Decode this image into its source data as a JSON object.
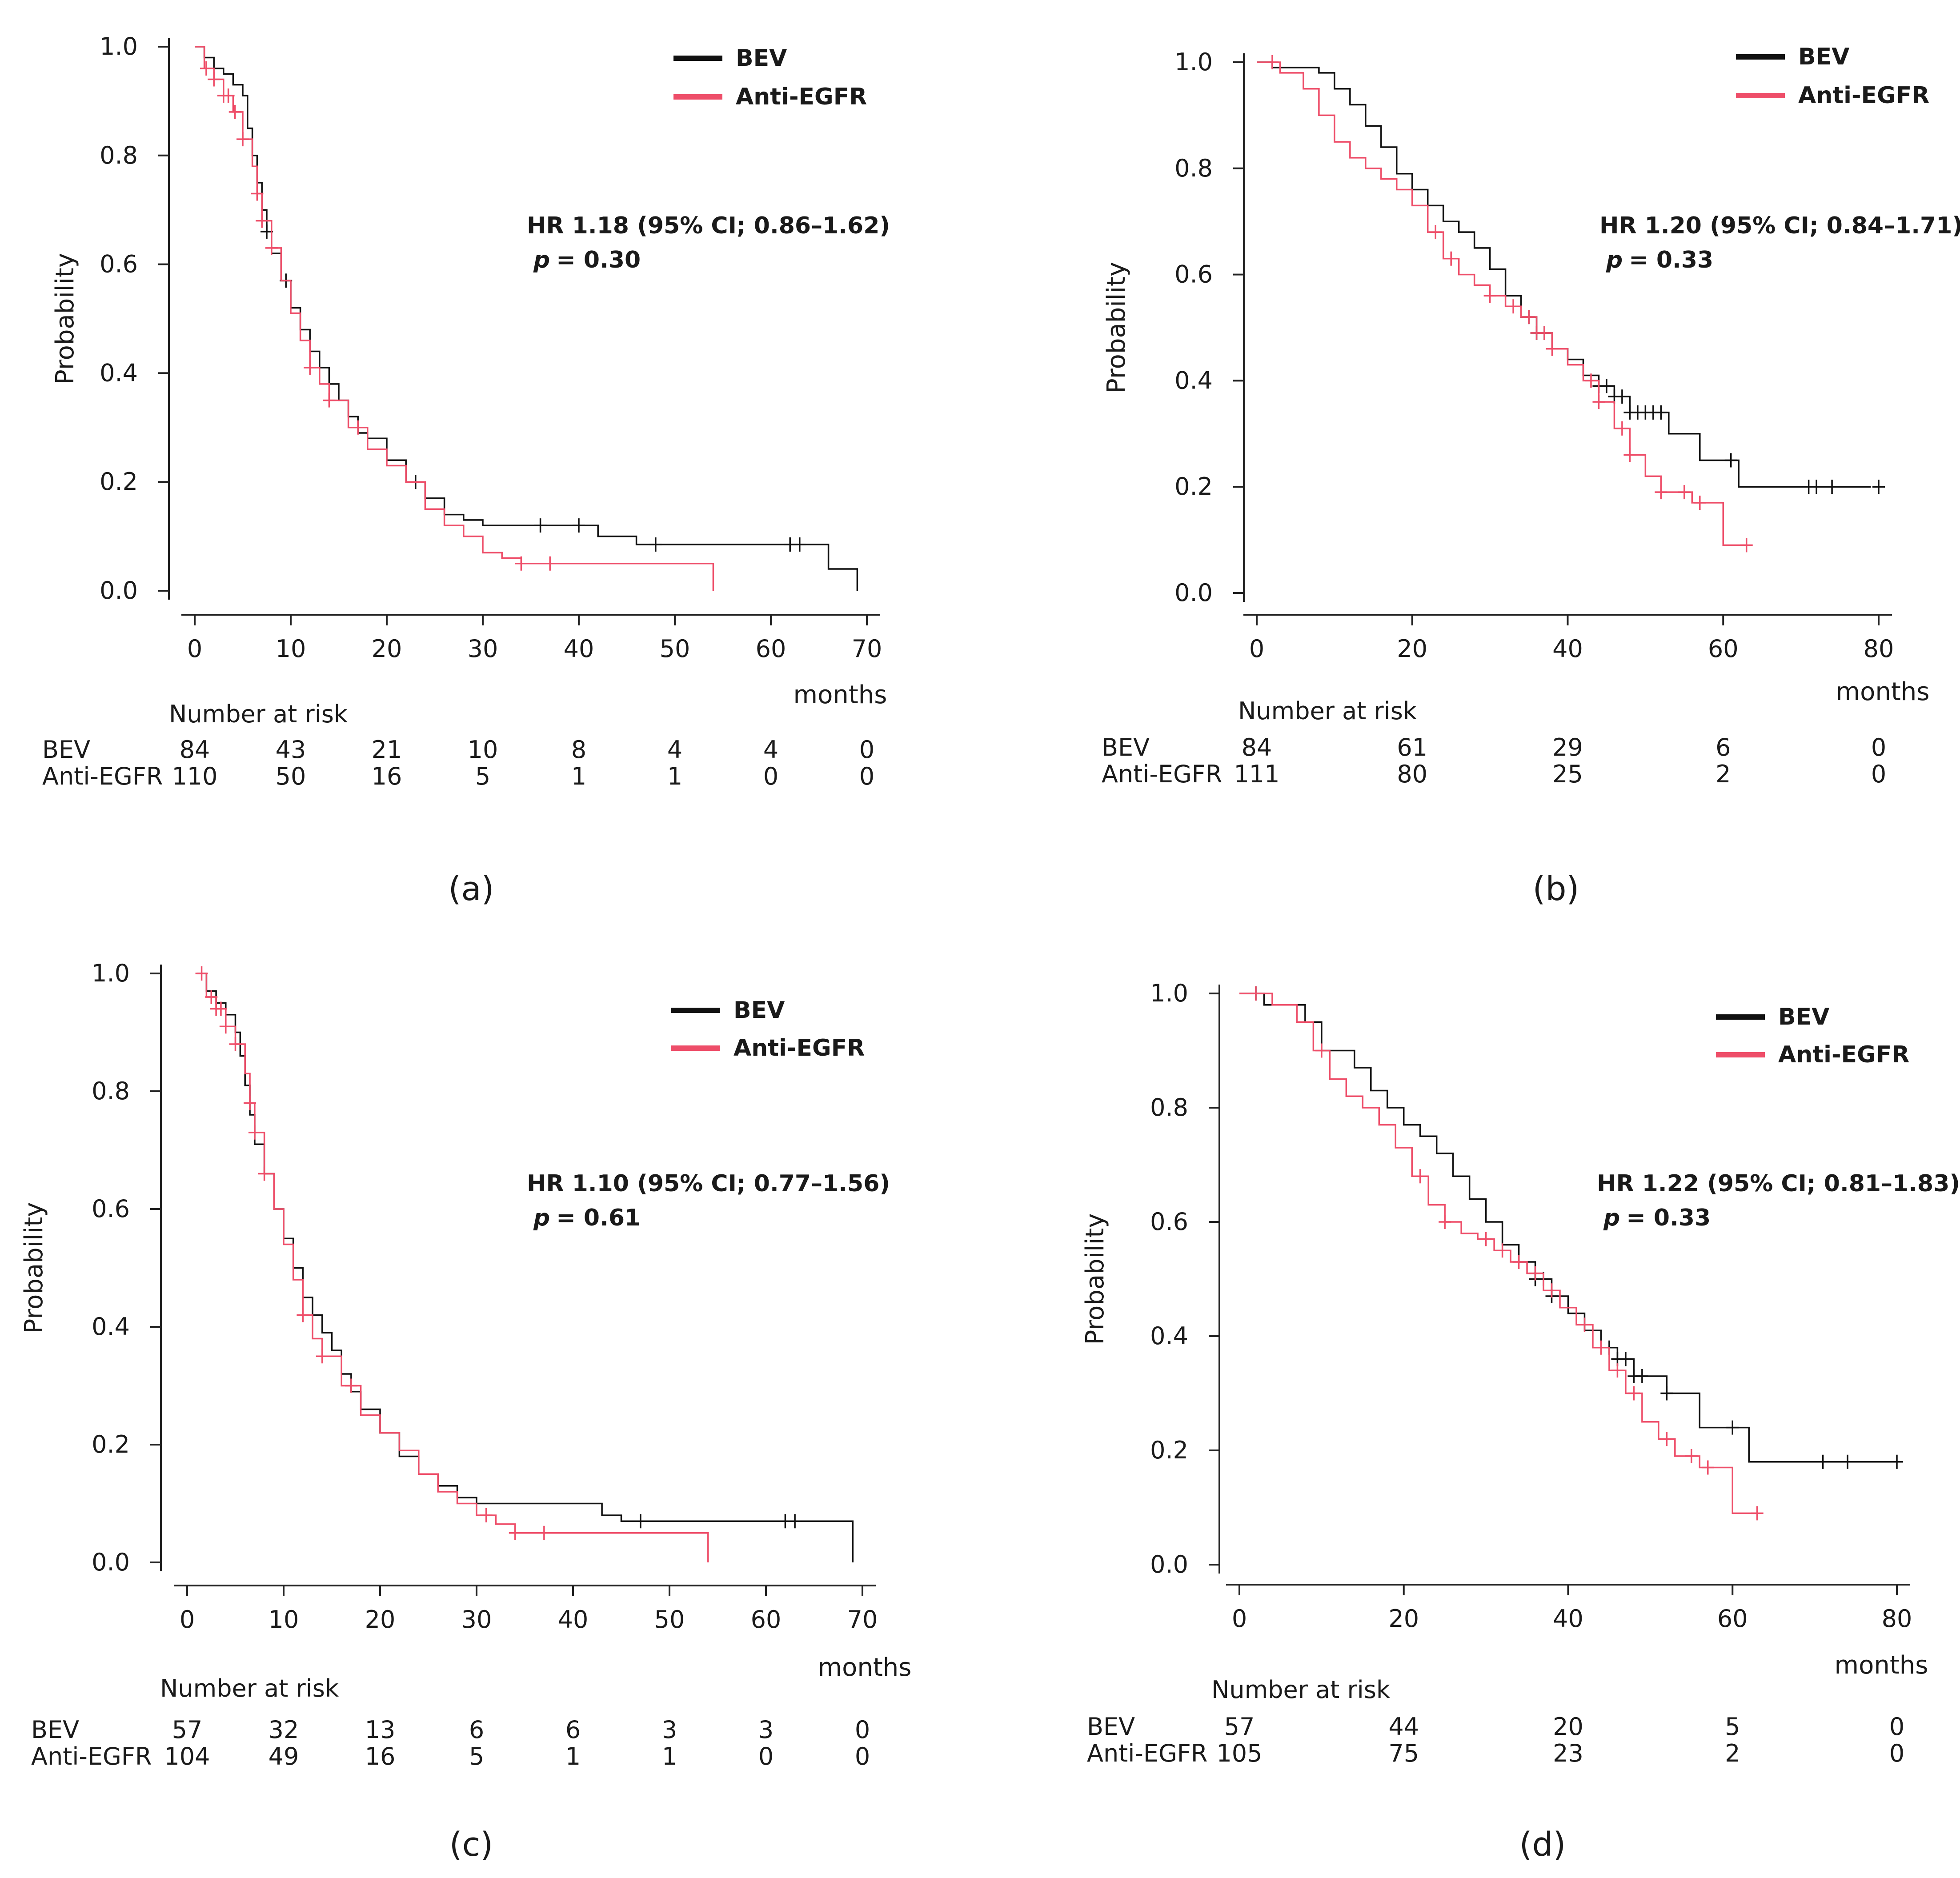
{
  "colors": {
    "bev": "#111111",
    "anti_egfr": "#ee4e69"
  },
  "chart_data": [
    {
      "id": "a",
      "type": "line",
      "panel_label": "(a)",
      "ylabel": "Probability",
      "xlabel": "months",
      "xlim": [
        0,
        70
      ],
      "ylim": [
        0,
        1
      ],
      "xticks": [
        "0",
        "10",
        "20",
        "30",
        "40",
        "50",
        "60",
        "70"
      ],
      "yticks": [
        "0.0",
        "0.2",
        "0.4",
        "0.6",
        "0.8",
        "1.0"
      ],
      "legend": [
        "BEV",
        "Anti-EGFR"
      ],
      "hr_text": "HR 1.18 (95% CI; 0.86–1.62)",
      "p_label": "p",
      "p_value": "= 0.30",
      "risk_title": "Number at risk",
      "risk_groups": [
        "BEV",
        "Anti-EGFR"
      ],
      "risk_times": [
        0,
        10,
        20,
        30,
        40,
        50,
        60,
        70
      ],
      "risk_values": [
        [
          "84",
          "43",
          "21",
          "10",
          "8",
          "4",
          "4",
          "0"
        ],
        [
          "110",
          "50",
          "16",
          "5",
          "1",
          "1",
          "0",
          "0"
        ]
      ],
      "series": [
        {
          "name": "BEV",
          "color_key": "bev",
          "x": [
            0,
            1,
            2,
            3,
            4,
            5,
            5.5,
            6,
            6.5,
            7,
            7.5,
            8,
            9,
            10,
            11,
            12,
            13,
            14,
            15,
            16,
            17,
            18,
            20,
            22,
            24,
            26,
            28,
            30,
            38,
            42,
            46,
            52,
            60,
            66,
            69
          ],
          "y": [
            1.0,
            0.98,
            0.96,
            0.95,
            0.93,
            0.91,
            0.85,
            0.8,
            0.75,
            0.7,
            0.66,
            0.62,
            0.57,
            0.52,
            0.48,
            0.44,
            0.41,
            0.38,
            0.35,
            0.32,
            0.29,
            0.28,
            0.24,
            0.2,
            0.17,
            0.14,
            0.13,
            0.12,
            0.12,
            0.1,
            0.085,
            0.085,
            0.085,
            0.04,
            0.0
          ],
          "censor_x": [
            7.5,
            9.5,
            23,
            36,
            40,
            48,
            62,
            63
          ]
        },
        {
          "name": "Anti-EGFR",
          "color_key": "anti_egfr",
          "x": [
            0,
            1,
            2,
            3,
            4,
            5,
            6,
            6.5,
            7,
            8,
            9,
            10,
            11,
            12,
            13,
            14,
            16,
            18,
            20,
            22,
            24,
            26,
            28,
            30,
            32,
            34,
            54
          ],
          "y": [
            1.0,
            0.96,
            0.94,
            0.91,
            0.88,
            0.83,
            0.78,
            0.73,
            0.68,
            0.63,
            0.57,
            0.51,
            0.46,
            0.41,
            0.38,
            0.35,
            0.3,
            0.26,
            0.23,
            0.2,
            0.15,
            0.12,
            0.1,
            0.07,
            0.06,
            0.05,
            0.0
          ],
          "censor_x": [
            1.2,
            2,
            3,
            3.5,
            4.2,
            5,
            6.5,
            7,
            8,
            12,
            14,
            17,
            34,
            37
          ]
        }
      ]
    },
    {
      "id": "b",
      "type": "line",
      "panel_label": "(b)",
      "ylabel": "Probability",
      "xlabel": "months",
      "xlim": [
        0,
        80
      ],
      "ylim": [
        0,
        1
      ],
      "xticks": [
        "0",
        "20",
        "40",
        "60",
        "80"
      ],
      "yticks": [
        "0.0",
        "0.2",
        "0.4",
        "0.6",
        "0.8",
        "1.0"
      ],
      "legend": [
        "BEV",
        "Anti-EGFR"
      ],
      "hr_text": "HR 1.20 (95% CI; 0.84–1.71)",
      "p_label": "p",
      "p_value": "= 0.33",
      "risk_title": "Number at risk",
      "risk_groups": [
        "BEV",
        "Anti-EGFR"
      ],
      "risk_times": [
        0,
        20,
        40,
        60,
        80
      ],
      "risk_values": [
        [
          "84",
          "61",
          "29",
          "6",
          "0"
        ],
        [
          "111",
          "80",
          "25",
          "2",
          "0"
        ]
      ],
      "series": [
        {
          "name": "BEV",
          "color_key": "bev",
          "x": [
            0,
            2,
            5,
            8,
            10,
            12,
            14,
            16,
            18,
            20,
            22,
            24,
            26,
            28,
            30,
            32,
            34,
            36,
            38,
            40,
            42,
            44,
            46,
            48,
            53,
            57,
            62,
            79
          ],
          "y": [
            1.0,
            0.99,
            0.99,
            0.98,
            0.95,
            0.92,
            0.88,
            0.84,
            0.79,
            0.76,
            0.73,
            0.7,
            0.68,
            0.65,
            0.61,
            0.56,
            0.52,
            0.49,
            0.46,
            0.44,
            0.41,
            0.39,
            0.37,
            0.34,
            0.3,
            0.25,
            0.2,
            0.2
          ],
          "censor_x": [
            35,
            36,
            37,
            44,
            45,
            46,
            47,
            48,
            49,
            50,
            51,
            52,
            61,
            71,
            72,
            74,
            80
          ]
        },
        {
          "name": "Anti-EGFR",
          "color_key": "anti_egfr",
          "x": [
            0,
            3,
            6,
            8,
            10,
            12,
            14,
            16,
            18,
            20,
            22,
            24,
            26,
            28,
            30,
            32,
            34,
            36,
            38,
            40,
            42,
            44,
            46,
            48,
            50,
            52,
            56,
            60,
            63
          ],
          "y": [
            1.0,
            0.98,
            0.95,
            0.9,
            0.85,
            0.82,
            0.8,
            0.78,
            0.76,
            0.73,
            0.68,
            0.63,
            0.6,
            0.58,
            0.56,
            0.54,
            0.52,
            0.49,
            0.46,
            0.43,
            0.4,
            0.36,
            0.31,
            0.26,
            0.22,
            0.19,
            0.17,
            0.09,
            0.09
          ],
          "censor_x": [
            2,
            23,
            25,
            30,
            33,
            35,
            36,
            37,
            38,
            43,
            44,
            47,
            48,
            52,
            55,
            57,
            63
          ]
        }
      ]
    },
    {
      "id": "c",
      "type": "line",
      "panel_label": "(c)",
      "ylabel": "Probability",
      "xlabel": "months",
      "xlim": [
        0,
        70
      ],
      "ylim": [
        0,
        1
      ],
      "xticks": [
        "0",
        "10",
        "20",
        "30",
        "40",
        "50",
        "60",
        "70"
      ],
      "yticks": [
        "0.0",
        "0.2",
        "0.4",
        "0.6",
        "0.8",
        "1.0"
      ],
      "legend": [
        "BEV",
        "Anti-EGFR"
      ],
      "hr_text": "HR 1.10 (95% CI; 0.77–1.56)",
      "p_label": "p",
      "p_value": "= 0.61",
      "risk_title": "Number at risk",
      "risk_groups": [
        "BEV",
        "Anti-EGFR"
      ],
      "risk_times": [
        0,
        10,
        20,
        30,
        40,
        50,
        60,
        70
      ],
      "risk_values": [
        [
          "57",
          "32",
          "13",
          "6",
          "6",
          "3",
          "3",
          "0"
        ],
        [
          "104",
          "49",
          "16",
          "5",
          "1",
          "1",
          "0",
          "0"
        ]
      ],
      "series": [
        {
          "name": "BEV",
          "color_key": "bev",
          "x": [
            1,
            2,
            3,
            4,
            5,
            5.5,
            6,
            6.5,
            7,
            8,
            9,
            10,
            11,
            12,
            13,
            14,
            15,
            16,
            17,
            18,
            20,
            22,
            24,
            26,
            28,
            30,
            43,
            45,
            69
          ],
          "y": [
            1.0,
            0.97,
            0.95,
            0.93,
            0.9,
            0.86,
            0.81,
            0.76,
            0.71,
            0.66,
            0.6,
            0.55,
            0.5,
            0.45,
            0.42,
            0.39,
            0.36,
            0.32,
            0.29,
            0.26,
            0.22,
            0.18,
            0.15,
            0.13,
            0.11,
            0.1,
            0.08,
            0.07,
            0.0
          ],
          "censor_x": [
            47,
            62,
            63
          ]
        },
        {
          "name": "Anti-EGFR",
          "color_key": "anti_egfr",
          "x": [
            1,
            2,
            3,
            4,
            5,
            6,
            6.5,
            7,
            8,
            9,
            10,
            11,
            12,
            13,
            14,
            16,
            18,
            20,
            22,
            24,
            26,
            28,
            30,
            32,
            34,
            54
          ],
          "y": [
            1.0,
            0.96,
            0.94,
            0.91,
            0.88,
            0.83,
            0.78,
            0.73,
            0.66,
            0.6,
            0.54,
            0.48,
            0.42,
            0.38,
            0.35,
            0.3,
            0.25,
            0.22,
            0.19,
            0.15,
            0.12,
            0.1,
            0.08,
            0.065,
            0.05,
            0.0
          ],
          "censor_x": [
            1.5,
            2.5,
            3,
            3.5,
            4,
            5,
            6.5,
            7,
            8,
            12,
            14,
            17,
            31,
            34,
            37
          ]
        }
      ]
    },
    {
      "id": "d",
      "type": "line",
      "panel_label": "(d)",
      "ylabel": "Probability",
      "xlabel": "months",
      "xlim": [
        0,
        80
      ],
      "ylim": [
        0,
        1
      ],
      "xticks": [
        "0",
        "20",
        "40",
        "60",
        "80"
      ],
      "yticks": [
        "0.0",
        "0.2",
        "0.4",
        "0.6",
        "0.8",
        "1.0"
      ],
      "legend": [
        "BEV",
        "Anti-EGFR"
      ],
      "hr_text": "HR 1.22 (95% CI; 0.81–1.83)",
      "p_label": "p",
      "p_value": "= 0.33",
      "risk_title": "Number at risk",
      "risk_groups": [
        "BEV",
        "Anti-EGFR"
      ],
      "risk_times": [
        0,
        20,
        40,
        60,
        80
      ],
      "risk_values": [
        [
          "57",
          "44",
          "20",
          "5",
          "0"
        ],
        [
          "105",
          "75",
          "23",
          "2",
          "0"
        ]
      ],
      "series": [
        {
          "name": "BEV",
          "color_key": "bev",
          "x": [
            0,
            3,
            6,
            8,
            10,
            14,
            16,
            18,
            20,
            22,
            24,
            26,
            28,
            30,
            32,
            34,
            36,
            38,
            40,
            42,
            44,
            46,
            48,
            52,
            56,
            62,
            80
          ],
          "y": [
            1.0,
            0.98,
            0.98,
            0.95,
            0.9,
            0.87,
            0.83,
            0.8,
            0.77,
            0.75,
            0.72,
            0.68,
            0.64,
            0.6,
            0.56,
            0.53,
            0.5,
            0.47,
            0.44,
            0.41,
            0.38,
            0.36,
            0.33,
            0.3,
            0.24,
            0.18,
            0.18
          ],
          "censor_x": [
            2,
            36,
            37,
            38,
            45,
            46,
            47,
            48,
            49,
            52,
            60,
            71,
            74,
            80
          ]
        },
        {
          "name": "Anti-EGFR",
          "color_key": "anti_egfr",
          "x": [
            0,
            4,
            7,
            9,
            11,
            13,
            15,
            17,
            19,
            21,
            23,
            25,
            27,
            29,
            31,
            33,
            35,
            37,
            39,
            41,
            43,
            45,
            47,
            49,
            51,
            53,
            56,
            60,
            63
          ],
          "y": [
            1.0,
            0.98,
            0.95,
            0.9,
            0.85,
            0.82,
            0.8,
            0.77,
            0.73,
            0.68,
            0.63,
            0.6,
            0.58,
            0.57,
            0.55,
            0.53,
            0.51,
            0.48,
            0.45,
            0.42,
            0.38,
            0.34,
            0.3,
            0.25,
            0.22,
            0.19,
            0.17,
            0.09,
            0.09
          ],
          "censor_x": [
            2,
            10,
            22,
            25,
            30,
            32,
            34,
            36,
            38,
            42,
            44,
            46,
            48,
            52,
            55,
            57,
            63
          ]
        }
      ]
    }
  ]
}
